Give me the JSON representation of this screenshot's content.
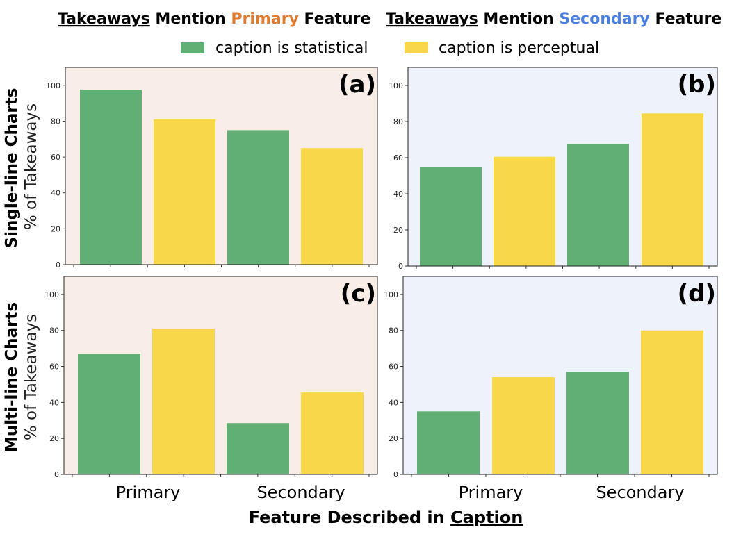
{
  "column_titles": [
    {
      "lead": "Takeaways",
      "mid": " Mention ",
      "feature": "Primary",
      "tail": " Feature",
      "feature_color": "#E07B2E"
    },
    {
      "lead": "Takeaways",
      "mid": " Mention ",
      "feature": "Secondary",
      "tail": " Feature",
      "feature_color": "#4A7FE0"
    }
  ],
  "legend": [
    {
      "label": "caption is statistical",
      "color": "#61AF74"
    },
    {
      "label": "caption is perceptual",
      "color": "#F8D748"
    }
  ],
  "row_titles": [
    {
      "title": "Single-line Charts",
      "subtitle": "% of Takeaways"
    },
    {
      "title": "Multi-line Charts",
      "subtitle": "% of Takeaways"
    }
  ],
  "xlabel": {
    "prefix": "Feature Described in ",
    "underlined": "Caption"
  },
  "colors": {
    "statistical": "#61AF74",
    "perceptual": "#F8D748",
    "primary_bg": "#F9EEE7",
    "secondary_bg": "#EEF2FB"
  },
  "chart_data": [
    {
      "type": "bar",
      "panel": "(a)",
      "row": "Single-line Charts",
      "column": "Takeaways Mention Primary Feature",
      "categories": [
        "Primary",
        "Secondary"
      ],
      "series": [
        {
          "name": "caption is statistical",
          "values": [
            97.5,
            75
          ]
        },
        {
          "name": "caption is perceptual",
          "values": [
            81,
            65
          ]
        }
      ],
      "ylabel": "% of Takeaways",
      "xlabel": "Feature Described in Caption",
      "ylim": [
        0,
        110
      ],
      "yticks": [
        0,
        20,
        40,
        60,
        80,
        100
      ]
    },
    {
      "type": "bar",
      "panel": "(b)",
      "row": "Single-line Charts",
      "column": "Takeaways Mention Secondary Feature",
      "categories": [
        "Primary",
        "Secondary"
      ],
      "series": [
        {
          "name": "caption is statistical",
          "values": [
            55,
            67.5
          ]
        },
        {
          "name": "caption is perceptual",
          "values": [
            60.5,
            84.5
          ]
        }
      ],
      "ylabel": "% of Takeaways",
      "xlabel": "Feature Described in Caption",
      "ylim": [
        0,
        110
      ],
      "yticks": [
        0,
        20,
        40,
        60,
        80,
        100
      ]
    },
    {
      "type": "bar",
      "panel": "(c)",
      "row": "Multi-line Charts",
      "column": "Takeaways Mention Primary Feature",
      "categories": [
        "Primary",
        "Secondary"
      ],
      "series": [
        {
          "name": "caption is statistical",
          "values": [
            67,
            28.5
          ]
        },
        {
          "name": "caption is perceptual",
          "values": [
            81,
            45.5
          ]
        }
      ],
      "ylabel": "% of Takeaways",
      "xlabel": "Feature Described in Caption",
      "ylim": [
        0,
        110
      ],
      "yticks": [
        0,
        20,
        40,
        60,
        80,
        100
      ]
    },
    {
      "type": "bar",
      "panel": "(d)",
      "row": "Multi-line Charts",
      "column": "Takeaways Mention Secondary Feature",
      "categories": [
        "Primary",
        "Secondary"
      ],
      "series": [
        {
          "name": "caption is statistical",
          "values": [
            35,
            57
          ]
        },
        {
          "name": "caption is perceptual",
          "values": [
            54,
            80
          ]
        }
      ],
      "ylabel": "% of Takeaways",
      "xlabel": "Feature Described in Caption",
      "ylim": [
        0,
        110
      ],
      "yticks": [
        0,
        20,
        40,
        60,
        80,
        100
      ]
    }
  ]
}
